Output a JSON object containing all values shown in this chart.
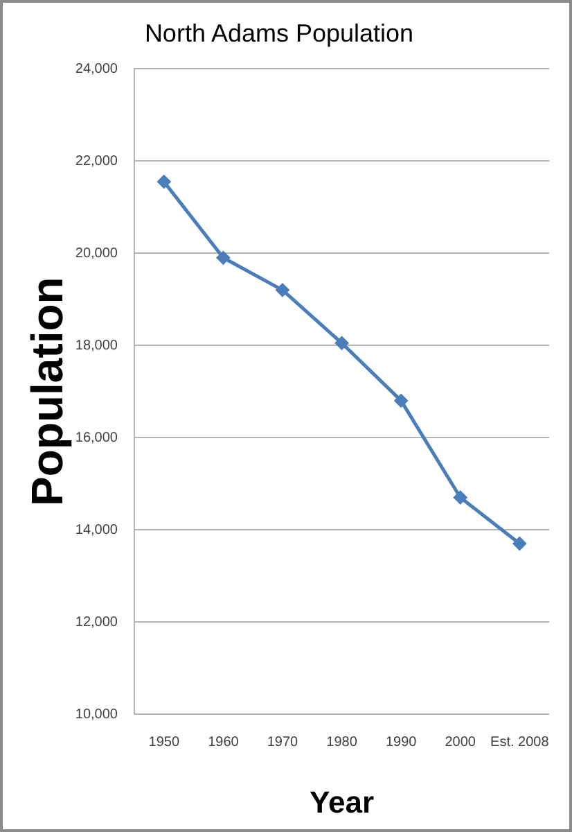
{
  "chart_data": {
    "type": "line",
    "title": "North Adams Population",
    "xlabel": "Year",
    "ylabel": "Population",
    "categories": [
      "1950",
      "1960",
      "1970",
      "1980",
      "1990",
      "2000",
      "Est. 2008"
    ],
    "values": [
      21550,
      19900,
      19200,
      18050,
      16800,
      14700,
      13700
    ],
    "color": "#4a7ebb",
    "ylim": [
      10000,
      24000
    ],
    "yticks": [
      {
        "value": 10000,
        "label": "10,000"
      },
      {
        "value": 12000,
        "label": "12,000"
      },
      {
        "value": 14000,
        "label": "14,000"
      },
      {
        "value": 16000,
        "label": "16,000"
      },
      {
        "value": 18000,
        "label": "18,000"
      },
      {
        "value": 20000,
        "label": "20,000"
      },
      {
        "value": 22000,
        "label": "22,000"
      },
      {
        "value": 24000,
        "label": "24,000"
      }
    ],
    "grid": "y",
    "marker": "diamond",
    "line_style": "solid"
  }
}
